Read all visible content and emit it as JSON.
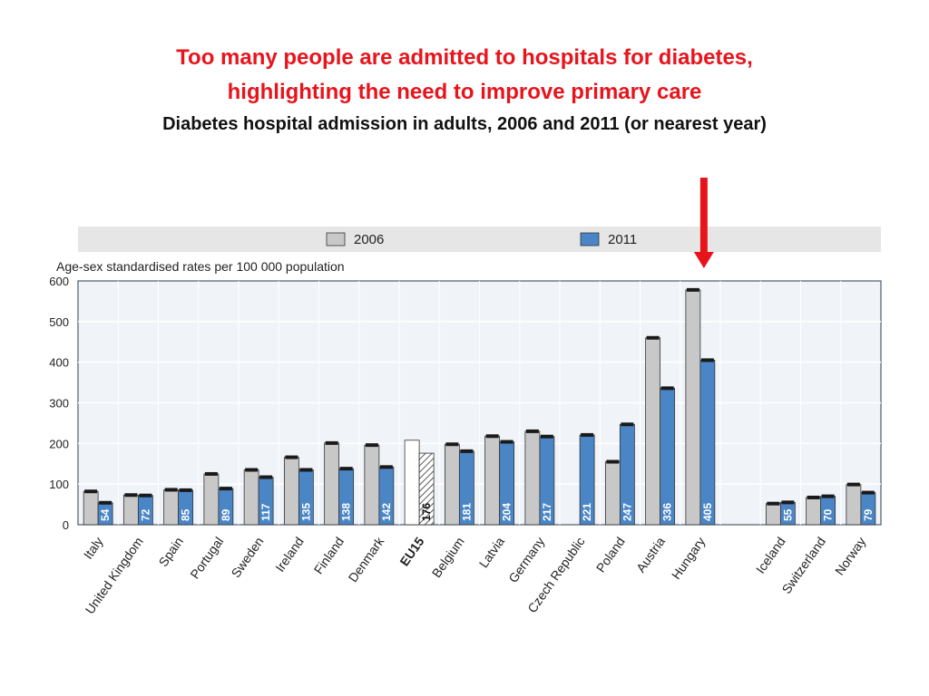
{
  "page": {
    "title_line1": "Too many people are admitted to hospitals for diabetes,",
    "title_line2": "highlighting the need to improve primary care",
    "subtitle": "Diabetes hospital admission in adults, 2006 and 2011 (or nearest year)"
  },
  "colors": {
    "series_2006": "#c8c8c8",
    "series_2011": "#4a86c6",
    "eu15_2006": "#ffffff",
    "arrow": "#e8141c",
    "legend_band": "#e6e6e6",
    "plot_background": "#f0f4f9"
  },
  "annotation": {
    "type": "down-arrow",
    "points_to": "Hungary"
  },
  "chart_data": {
    "type": "bar",
    "ylabel": "Age-sex standardised rates per 100 000 population",
    "ylim": [
      0,
      600
    ],
    "yticks": [
      0,
      100,
      200,
      300,
      400,
      500,
      600
    ],
    "grid": true,
    "legend_position": "top",
    "categories": [
      "Italy",
      "United Kingdom",
      "Spain",
      "Portugal",
      "Sweden",
      "Ireland",
      "Finland",
      "Denmark",
      "EU15",
      "Belgium",
      "Latvia",
      "Germany",
      "Czech Republic",
      "Poland",
      "Austria",
      "Hungary",
      "",
      "Iceland",
      "Switzerland",
      "Norway"
    ],
    "series": [
      {
        "name": "2006",
        "values": [
          82,
          73,
          86,
          125,
          135,
          166,
          201,
          196,
          208,
          198,
          218,
          230,
          null,
          155,
          460,
          578,
          null,
          52,
          67,
          99
        ]
      },
      {
        "name": "2011",
        "values": [
          54,
          72,
          85,
          89,
          117,
          135,
          138,
          142,
          176,
          181,
          204,
          217,
          221,
          247,
          336,
          405,
          null,
          55,
          70,
          79
        ]
      }
    ],
    "value_labels_2011": [
      "54",
      "72",
      "85",
      "89",
      "117",
      "135",
      "138",
      "142",
      "176",
      "181",
      "204",
      "217",
      "221",
      "247",
      "336",
      "405",
      "",
      "55",
      "70",
      "79"
    ],
    "emphasized_category": "EU15",
    "eu15_2011_hatched": true
  }
}
